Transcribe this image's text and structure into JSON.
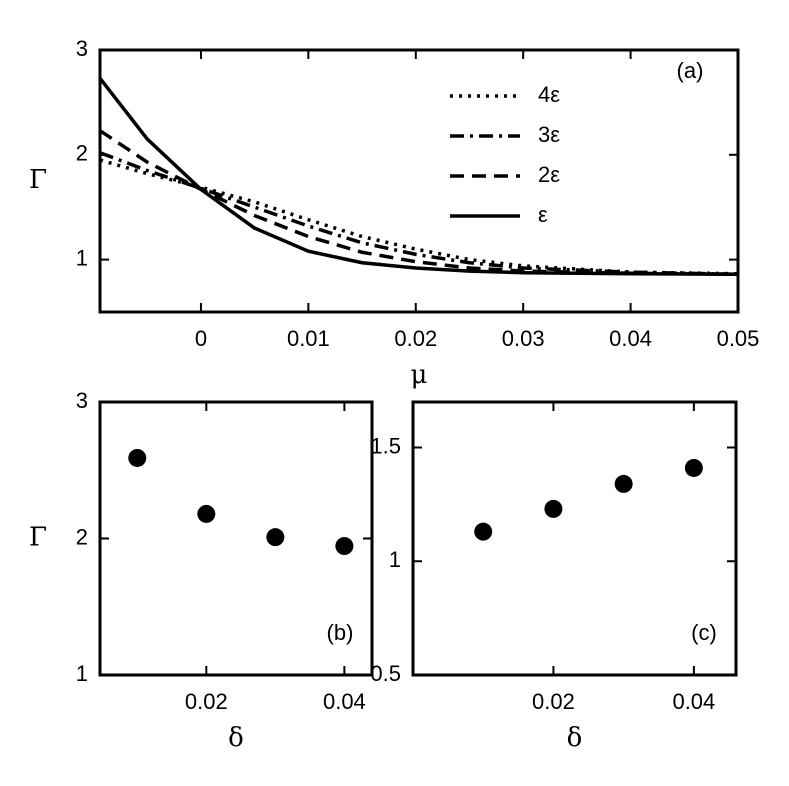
{
  "chart_data": [
    {
      "type": "line",
      "xlabel": "μ",
      "ylabel": "Γ",
      "annotation": "(a)",
      "x": [
        -0.0094,
        -0.005,
        0,
        0.005,
        0.01,
        0.015,
        0.02,
        0.025,
        0.03,
        0.04,
        0.05
      ],
      "series": [
        {
          "name": "4ε",
          "color": "#000000",
          "linestyle": "dotted",
          "values": [
            1.95,
            1.82,
            1.69,
            1.55,
            1.38,
            1.22,
            1.1,
            1.0,
            0.94,
            0.88,
            0.865
          ]
        },
        {
          "name": "3ε",
          "color": "#000000",
          "linestyle": "dashdot",
          "values": [
            2.02,
            1.85,
            1.68,
            1.5,
            1.32,
            1.16,
            1.05,
            0.97,
            0.92,
            0.88,
            0.86
          ]
        },
        {
          "name": "2ε",
          "color": "#000000",
          "linestyle": "dashed",
          "values": [
            2.23,
            1.93,
            1.67,
            1.42,
            1.22,
            1.07,
            0.98,
            0.92,
            0.89,
            0.87,
            0.86
          ]
        },
        {
          "name": "ε",
          "color": "#000000",
          "linestyle": "solid",
          "values": [
            2.73,
            2.15,
            1.67,
            1.3,
            1.08,
            0.97,
            0.92,
            0.89,
            0.875,
            0.865,
            0.86
          ]
        }
      ],
      "xlim": [
        -0.0094,
        0.05
      ],
      "xticks": [
        0,
        0.01,
        0.02,
        0.03,
        0.04,
        0.05
      ],
      "ylim": [
        0.5,
        3
      ],
      "yticks": [
        1,
        2,
        3
      ],
      "legend": "upper right"
    },
    {
      "type": "scatter",
      "xlabel": "δ",
      "ylabel": "Γ",
      "annotation": "(b)",
      "x": [
        0.01,
        0.02,
        0.03,
        0.04
      ],
      "values": [
        2.59,
        2.18,
        2.01,
        1.945
      ],
      "color": "#000000",
      "xlim": [
        0.0046,
        0.044
      ],
      "xticks": [
        0.02,
        0.04
      ],
      "ylim": [
        1,
        3
      ],
      "yticks": [
        1,
        2,
        3
      ]
    },
    {
      "type": "scatter",
      "xlabel": "δ",
      "annotation": "(c)",
      "x": [
        0.01,
        0.02,
        0.03,
        0.04
      ],
      "values": [
        1.13,
        1.23,
        1.34,
        1.41
      ],
      "color": "#000000",
      "xlim": [
        0,
        0.046
      ],
      "xticks": [
        0.02,
        0.04
      ],
      "ylim": [
        0.5,
        1.7
      ],
      "yticks": [
        0.5,
        1,
        1.5
      ]
    }
  ]
}
